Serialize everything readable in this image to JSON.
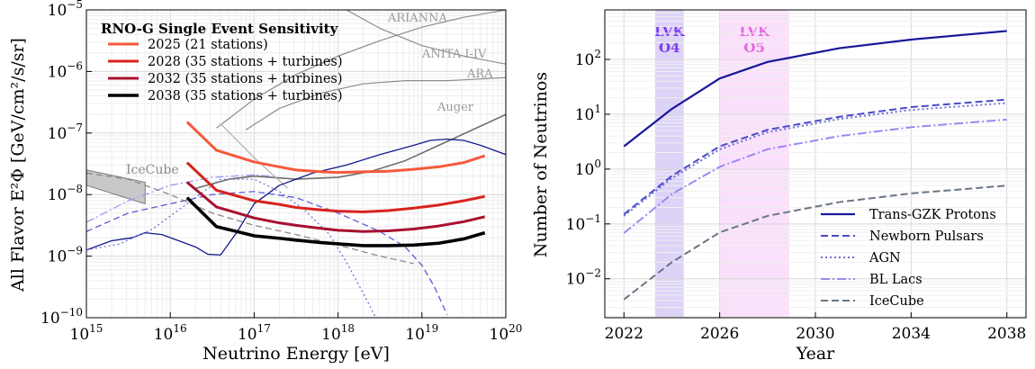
{
  "chart_data": [
    {
      "type": "line",
      "title": "",
      "xlabel": "Neutrino Energy [eV]",
      "ylabel": "All Flavor E²Φ [GeV/cm²/s/sr]",
      "xscale": "log",
      "yscale": "log",
      "xlim": [
        1000000000000000.0,
        1e+20
      ],
      "ylim": [
        1e-10,
        1e-05
      ],
      "x_ticks": [
        {
          "v": 15,
          "base": "10",
          "exp": "15"
        },
        {
          "v": 16,
          "base": "10",
          "exp": "16"
        },
        {
          "v": 17,
          "base": "10",
          "exp": "17"
        },
        {
          "v": 18,
          "base": "10",
          "exp": "18"
        },
        {
          "v": 19,
          "base": "10",
          "exp": "19"
        },
        {
          "v": 20,
          "base": "10",
          "exp": "20"
        }
      ],
      "y_ticks": [
        {
          "v": -10,
          "base": "10",
          "exp": "−10"
        },
        {
          "v": -9,
          "base": "10",
          "exp": "−9"
        },
        {
          "v": -8,
          "base": "10",
          "exp": "−8"
        },
        {
          "v": -7,
          "base": "10",
          "exp": "−7"
        },
        {
          "v": -6,
          "base": "10",
          "exp": "−6"
        },
        {
          "v": -5,
          "base": "10",
          "exp": "−5"
        }
      ],
      "grid": true,
      "legend_position": "top-left",
      "legend_title": "RNO-G Single Event Sensitivity",
      "series": [
        {
          "name": "2025 (21 stations)",
          "color": "#f4593a",
          "width": 3,
          "x": [
            16.2,
            16.55,
            17,
            17.3,
            17.5,
            17.8,
            18,
            18.3,
            18.6,
            18.9,
            19.2,
            19.5,
            19.75
          ],
          "y": [
            -6.82,
            -7.28,
            -7.47,
            -7.55,
            -7.6,
            -7.63,
            -7.64,
            -7.63,
            -7.62,
            -7.59,
            -7.55,
            -7.48,
            -7.37
          ]
        },
        {
          "name": "2028 (35 stations + turbines)",
          "color": "#d9221d",
          "width": 3,
          "x": [
            16.2,
            16.55,
            17,
            17.3,
            17.5,
            17.8,
            18,
            18.3,
            18.6,
            18.9,
            19.2,
            19.5,
            19.75
          ],
          "y": [
            -7.48,
            -7.93,
            -8.1,
            -8.16,
            -8.21,
            -8.25,
            -8.27,
            -8.28,
            -8.26,
            -8.22,
            -8.17,
            -8.1,
            -8.03
          ]
        },
        {
          "name": "2032 (35 stations + turbines)",
          "color": "#a8102e",
          "width": 3,
          "x": [
            16.2,
            16.55,
            17,
            17.3,
            17.5,
            17.8,
            18,
            18.3,
            18.6,
            18.9,
            19.2,
            19.5,
            19.75
          ],
          "y": [
            -7.8,
            -8.2,
            -8.38,
            -8.46,
            -8.5,
            -8.55,
            -8.58,
            -8.6,
            -8.59,
            -8.56,
            -8.51,
            -8.44,
            -8.36
          ]
        },
        {
          "name": "2038 (35 stations + turbines)",
          "color": "#000000",
          "width": 3.6,
          "x": [
            16.2,
            16.55,
            17,
            17.3,
            17.5,
            17.8,
            18,
            18.3,
            18.6,
            18.9,
            19.2,
            19.5,
            19.75
          ],
          "y": [
            -8.05,
            -8.52,
            -8.67,
            -8.71,
            -8.74,
            -8.78,
            -8.8,
            -8.83,
            -8.83,
            -8.82,
            -8.79,
            -8.72,
            -8.62
          ]
        }
      ],
      "reference_curves": [
        {
          "label": "ARIANNA",
          "color": "#8c8c8c",
          "width": 1.2,
          "x": [
            16.55,
            17,
            17.5,
            18,
            18.5,
            19,
            19.5,
            20
          ],
          "y": [
            -6.92,
            -6.45,
            -6.05,
            -5.75,
            -5.5,
            -5.28,
            -5.12,
            -5.0
          ]
        },
        {
          "label": "ANITA I-IV",
          "color": "#8c8c8c",
          "width": 1.2,
          "x": [
            18.1,
            18.5,
            19,
            19.5,
            20
          ],
          "y": [
            -5.0,
            -5.3,
            -5.58,
            -5.75,
            -5.88
          ]
        },
        {
          "label": "ARA",
          "color": "#8c8c8c",
          "width": 1.2,
          "x": [
            16.9,
            17.3,
            17.8,
            18.3,
            18.8,
            19.3,
            20
          ],
          "y": [
            -6.95,
            -6.6,
            -6.35,
            -6.2,
            -6.15,
            -6.15,
            -6.1
          ]
        },
        {
          "label": "Auger",
          "color": "#6e6e6e",
          "width": 1.6,
          "x": [
            16.3,
            16.7,
            17,
            17.5,
            18,
            18.4,
            18.8,
            19.2,
            19.6,
            20
          ],
          "y": [
            -7.9,
            -7.75,
            -7.7,
            -7.75,
            -7.72,
            -7.62,
            -7.45,
            -7.2,
            -6.95,
            -6.7
          ]
        },
        {
          "label": "",
          "color": "#b0b0b0",
          "width": 1.2,
          "x": [
            16.6,
            17,
            17.4
          ],
          "y": [
            -6.85,
            -7.4,
            -7.9
          ]
        },
        {
          "label": "",
          "color": "#141a8c",
          "width": 1.3,
          "x": [
            15,
            15.3,
            15.55,
            15.7,
            15.9,
            16.1,
            16.3,
            16.45,
            16.6,
            16.8,
            17.0,
            17.3,
            17.7,
            18.1,
            18.5,
            18.9,
            19.1,
            19.3,
            19.5,
            19.7,
            20
          ],
          "y": [
            -8.9,
            -8.75,
            -8.7,
            -8.62,
            -8.65,
            -8.75,
            -8.85,
            -8.97,
            -8.98,
            -8.6,
            -8.15,
            -7.85,
            -7.65,
            -7.52,
            -7.35,
            -7.2,
            -7.12,
            -7.1,
            -7.12,
            -7.2,
            -7.35
          ]
        },
        {
          "label": "",
          "color": "#5a5ad6",
          "width": 1.3,
          "dash": "7,4",
          "x": [
            15,
            15.5,
            16,
            16.5,
            17,
            17.5,
            18,
            18.5,
            18.8,
            19,
            19.15,
            19.3
          ],
          "y": [
            -8.6,
            -8.3,
            -8.15,
            -8.0,
            -7.95,
            -8.05,
            -8.3,
            -8.6,
            -8.85,
            -9.15,
            -9.5,
            -9.95
          ]
        },
        {
          "label": "",
          "color": "#7070d6",
          "width": 1.3,
          "dash": "2,3",
          "x": [
            15,
            15.4,
            15.8,
            16.2,
            16.6,
            17,
            17.3,
            17.6,
            17.9,
            18.1,
            18.3,
            18.45,
            18.55
          ],
          "y": [
            -8.9,
            -8.8,
            -8.55,
            -8.15,
            -7.75,
            -7.75,
            -7.95,
            -8.25,
            -8.65,
            -9.1,
            -9.6,
            -10.0,
            -10.1
          ]
        },
        {
          "label": "",
          "color": "#9b9bee",
          "width": 1.3,
          "dash": "9,3,2,3",
          "x": [
            15,
            15.5,
            16,
            16.5,
            17,
            17.2
          ],
          "y": [
            -8.45,
            -8.1,
            -7.85,
            -7.72,
            -7.68,
            -7.7
          ]
        },
        {
          "label": "",
          "color": "#8a8a8a",
          "width": 1.3,
          "dash": "7,4",
          "x": [
            15,
            15.5,
            16,
            16.5,
            17,
            17.5,
            18,
            18.5,
            18.9
          ],
          "y": [
            -7.65,
            -7.75,
            -8.0,
            -8.3,
            -8.5,
            -8.65,
            -8.82,
            -9.0,
            -9.12
          ]
        }
      ],
      "icecube_label": "IceCube",
      "curve_labels": {
        "arianna": "ARIANNA",
        "anita": "ANITA I-IV",
        "ara": "ARA",
        "auger": "Auger"
      }
    },
    {
      "type": "line",
      "title": "",
      "xlabel": "Year",
      "ylabel": "Number of Neutrinos",
      "yscale": "log",
      "xlim": [
        2021.2,
        2038.8
      ],
      "ylim": [
        0.00195,
        800
      ],
      "x_ticks": [
        "2022",
        "2026",
        "2030",
        "2034",
        "2038"
      ],
      "y_ticks": [
        {
          "v": -2,
          "base": "10",
          "exp": "−2"
        },
        {
          "v": -1,
          "base": "10",
          "exp": "−1"
        },
        {
          "v": 0,
          "base": "10",
          "exp": "0"
        },
        {
          "v": 1,
          "base": "10",
          "exp": "1"
        },
        {
          "v": 2,
          "base": "10",
          "exp": "2"
        }
      ],
      "grid": true,
      "legend_position": "bottom-right",
      "bands": [
        {
          "label": [
            "LVK",
            "O4"
          ],
          "x0": 2023.3,
          "x1": 2024.5,
          "fill": "#ddd3f7",
          "text_color": "#7a3df0"
        },
        {
          "label": [
            "LVK",
            "O5"
          ],
          "x0": 2026.0,
          "x1": 2028.9,
          "fill": "#fae0fa",
          "text_color": "#e267e2"
        }
      ],
      "series": [
        {
          "name": "Trans-GZK Protons",
          "color": "#17179a",
          "width": 2.2,
          "dash": "",
          "x": [
            2022,
            2024,
            2026,
            2028,
            2031,
            2034,
            2038
          ],
          "y": [
            2.6,
            12.5,
            45,
            90,
            160,
            230,
            330
          ]
        },
        {
          "name": "Newborn Pulsars",
          "color": "#4a4ac8",
          "width": 2,
          "dash": "8,4",
          "x": [
            2022,
            2024,
            2026,
            2028,
            2031,
            2034,
            2038
          ],
          "y": [
            0.15,
            0.75,
            2.6,
            5.2,
            9.0,
            13.5,
            18.5
          ]
        },
        {
          "name": "AGN",
          "color": "#6f6fd6",
          "width": 2,
          "dash": "2,3",
          "x": [
            2022,
            2024,
            2026,
            2028,
            2031,
            2034,
            2038
          ],
          "y": [
            0.14,
            0.68,
            2.3,
            4.7,
            8.2,
            12,
            16
          ]
        },
        {
          "name": "BL Lacs",
          "color": "#9b8af0",
          "width": 2,
          "dash": "10,3,2,3",
          "x": [
            2022,
            2024,
            2026,
            2028,
            2031,
            2034,
            2038
          ],
          "y": [
            0.068,
            0.35,
            1.1,
            2.3,
            4.0,
            5.8,
            8.0
          ]
        },
        {
          "name": "IceCube",
          "color": "#6a7685",
          "width": 2,
          "dash": "8,4",
          "x": [
            2022,
            2024,
            2026,
            2028,
            2031,
            2034,
            2038
          ],
          "y": [
            0.0042,
            0.02,
            0.07,
            0.14,
            0.25,
            0.36,
            0.5
          ]
        }
      ]
    }
  ]
}
